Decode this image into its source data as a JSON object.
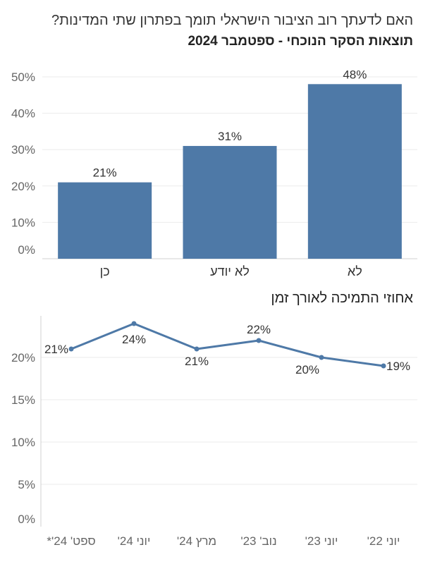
{
  "header": {
    "title": "האם לדעתך רוב הציבור הישראלי תומך בפתרון שתי המדינות?",
    "subtitle": "תוצאות הסקר הנוכחי - ספטמבר 2024"
  },
  "line_section": {
    "title": "אחוזי התמיכה לאורך זמן"
  },
  "colors": {
    "bar": "#4e79a7",
    "line": "#4e79a7",
    "grid": "#ebebeb",
    "axis_text": "#666666",
    "label_text": "#333333"
  },
  "chart_data": [
    {
      "type": "bar",
      "categories": [
        "כן",
        "לא יודע",
        "לא"
      ],
      "values": [
        21,
        31,
        48
      ],
      "value_labels": [
        "21%",
        "31%",
        "48%"
      ],
      "ylim": [
        0,
        50
      ],
      "yticks": [
        "0%",
        "10%",
        "20%",
        "30%",
        "40%",
        "50%"
      ],
      "grid": true
    },
    {
      "type": "line",
      "categories": [
        "ספט' 24'*",
        "יוני 24'",
        "מרץ 24'",
        "נוב' 23'",
        "יוני 23'",
        "יוני 22'"
      ],
      "values": [
        21,
        24,
        21,
        22,
        20,
        19
      ],
      "value_labels": [
        "21%",
        "24%",
        "21%",
        "22%",
        "20%",
        "19%"
      ],
      "ylim": [
        0,
        25
      ],
      "yticks": [
        "0%",
        "5%",
        "10%",
        "15%",
        "20%"
      ],
      "grid": true
    }
  ]
}
